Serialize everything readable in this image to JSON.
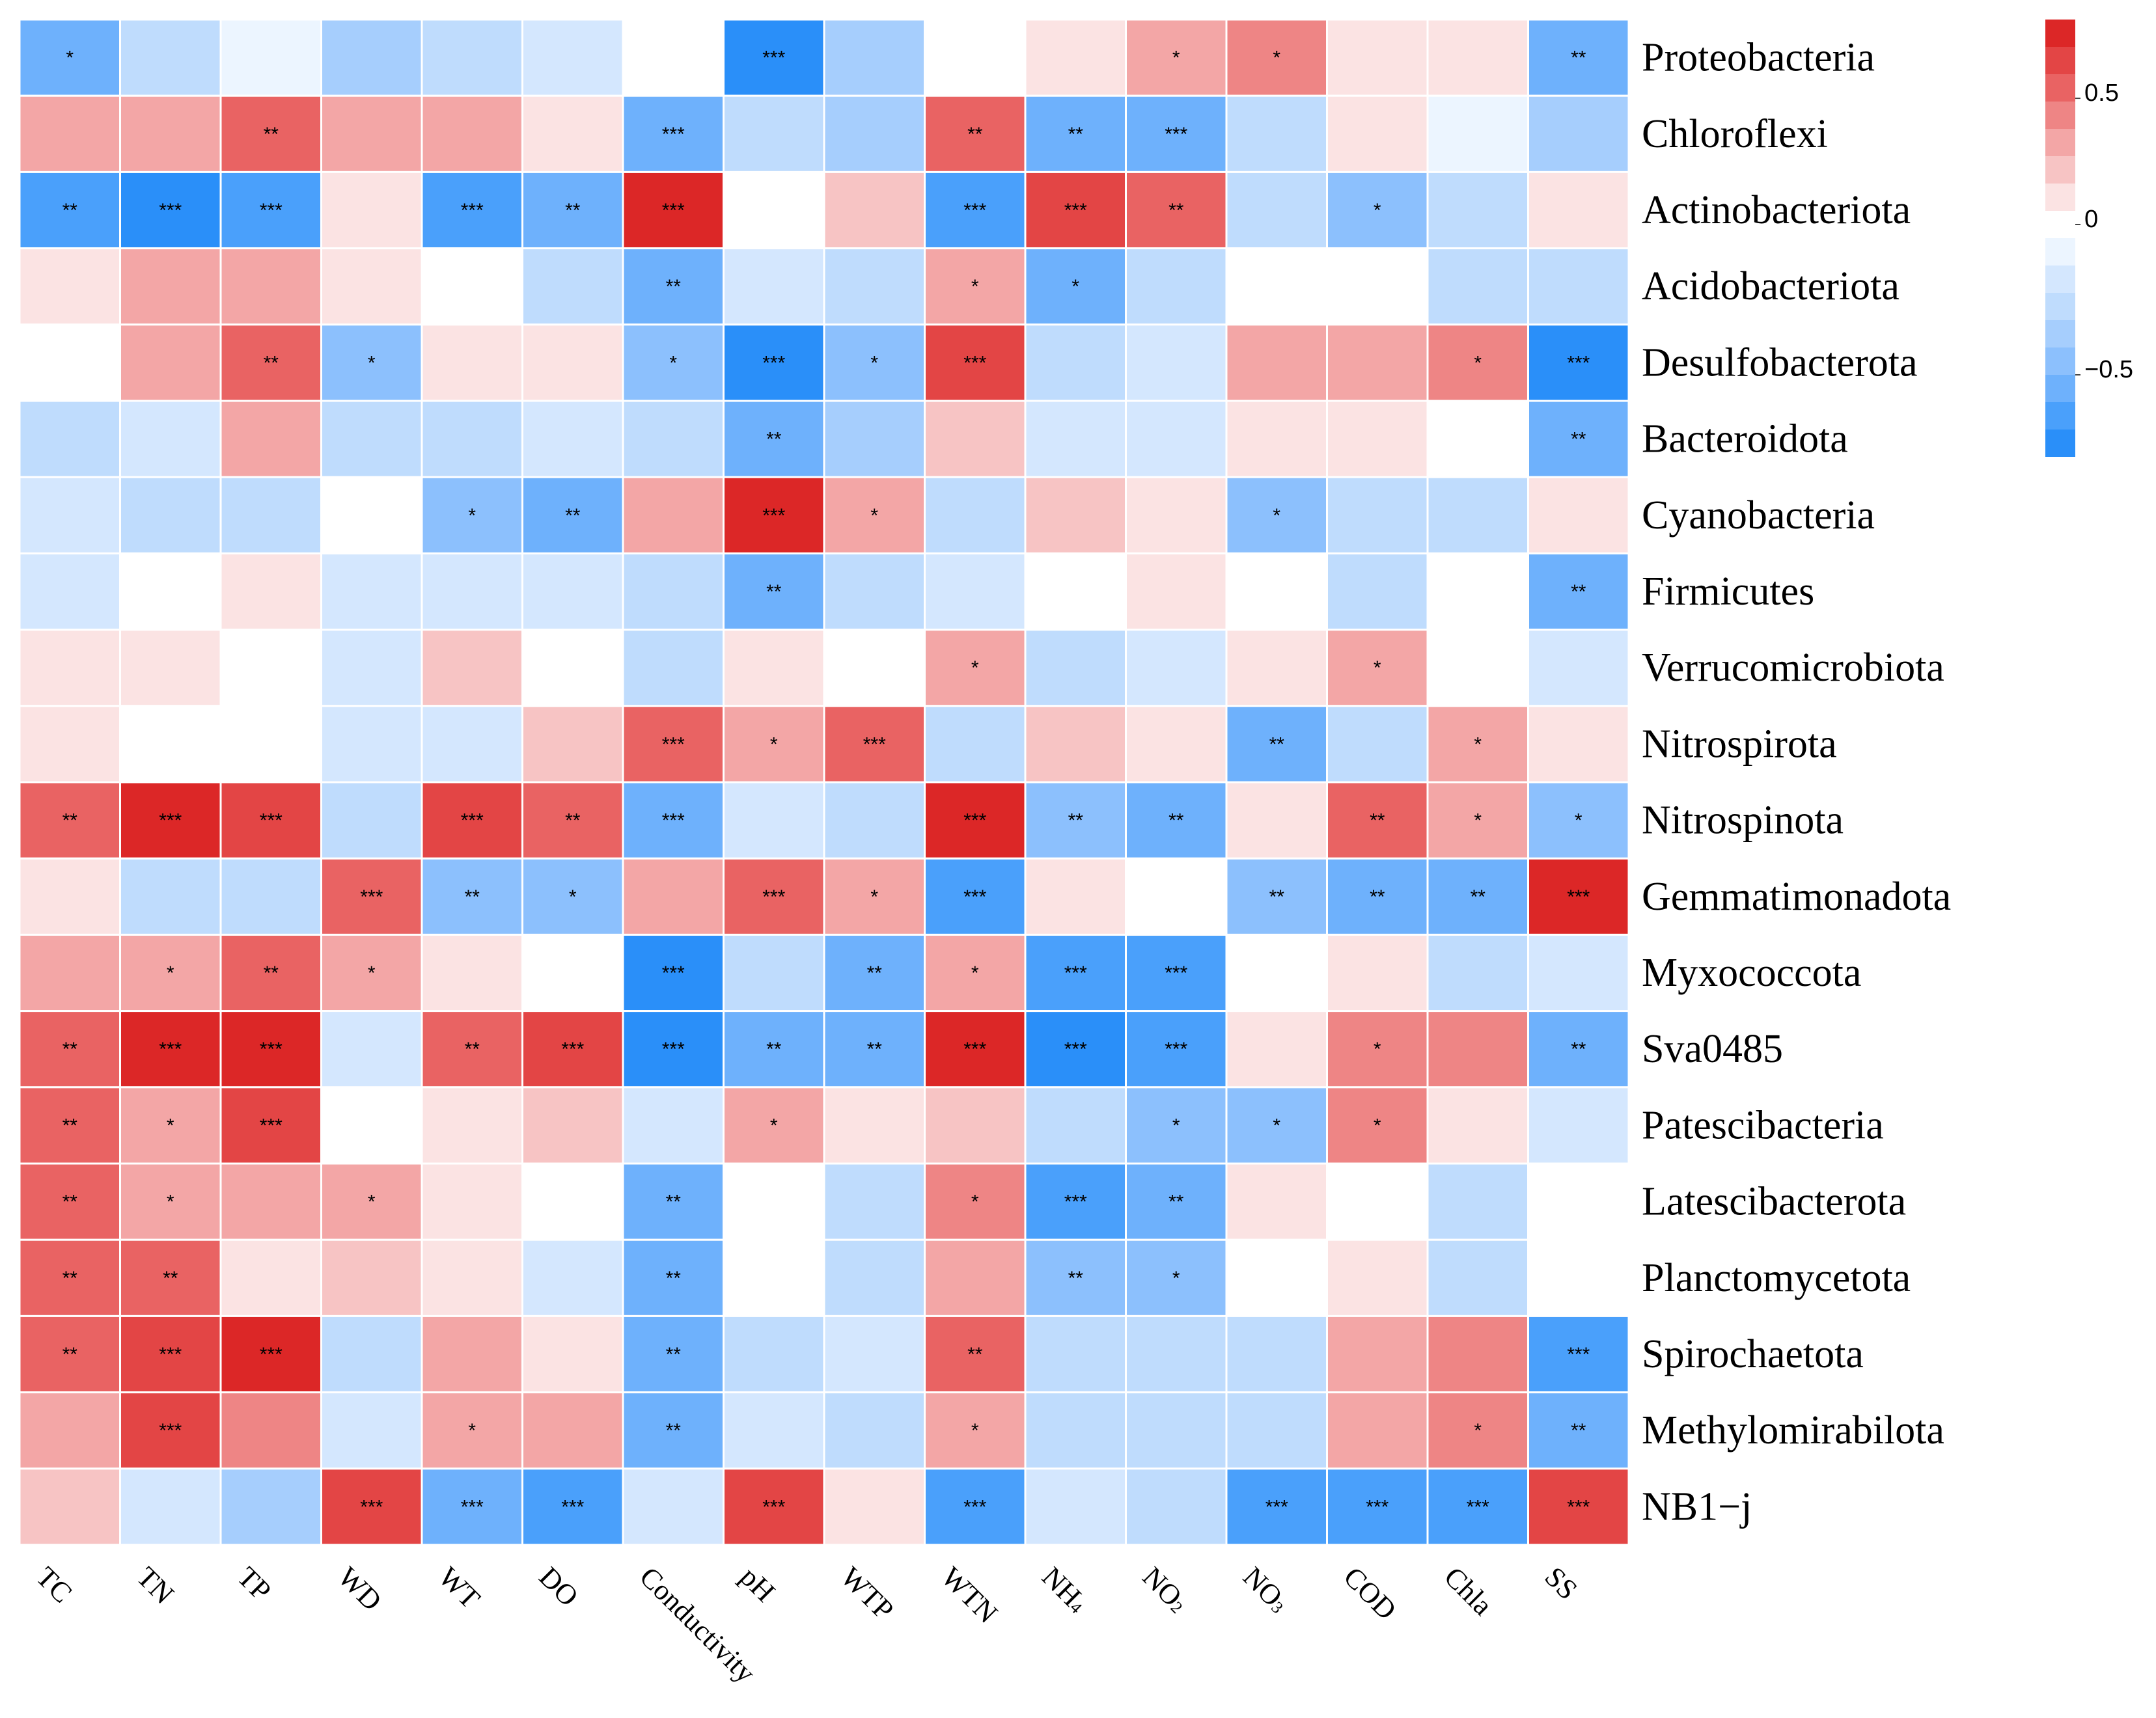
{
  "chart_data": {
    "type": "heatmap",
    "title": "",
    "columns": [
      {
        "label": "TC",
        "sub": ""
      },
      {
        "label": "TN",
        "sub": ""
      },
      {
        "label": "TP",
        "sub": ""
      },
      {
        "label": "WD",
        "sub": ""
      },
      {
        "label": "WT",
        "sub": ""
      },
      {
        "label": "DO",
        "sub": ""
      },
      {
        "label": "Conductivity",
        "sub": ""
      },
      {
        "label": "pH",
        "sub": ""
      },
      {
        "label": "WTP",
        "sub": ""
      },
      {
        "label": "WTN",
        "sub": ""
      },
      {
        "label": "NH",
        "sub": "4"
      },
      {
        "label": "NO",
        "sub": "2"
      },
      {
        "label": "NO",
        "sub": "3"
      },
      {
        "label": "COD",
        "sub": ""
      },
      {
        "label": "Chla",
        "sub": ""
      },
      {
        "label": "SS",
        "sub": ""
      }
    ],
    "rows": [
      "Proteobacteria",
      "Chloroflexi",
      "Actinobacteriota",
      "Acidobacteriota",
      "Desulfobacterota",
      "Bacteroidota",
      "Cyanobacteria",
      "Firmicutes",
      "Verrucomicrobiota",
      "Nitrospirota",
      "Nitrospinota",
      "Gemmatimonadota",
      "Myxococcota",
      "Sva0485",
      "Patescibacteria",
      "Latescibacterota",
      "Planctomycetota",
      "Spirochaetota",
      "Methylomirabilota",
      "NB1−j"
    ],
    "values": [
      [
        -0.5,
        -0.25,
        -0.05,
        -0.35,
        -0.25,
        -0.1,
        0,
        -0.75,
        -0.35,
        0,
        0.1,
        0.35,
        0.45,
        0.1,
        0.1,
        -0.5
      ],
      [
        0.25,
        0.25,
        0.55,
        0.25,
        0.25,
        0.1,
        -0.6,
        -0.2,
        -0.35,
        0.55,
        -0.6,
        -0.6,
        -0.2,
        0.1,
        -0.05,
        -0.35
      ],
      [
        -0.65,
        -0.75,
        -0.65,
        0.1,
        -0.7,
        -0.6,
        0.8,
        0,
        0.2,
        -0.7,
        0.7,
        0.6,
        -0.2,
        -0.4,
        -0.2,
        0.1
      ],
      [
        0.1,
        0.25,
        0.25,
        0.1,
        0,
        -0.2,
        -0.5,
        -0.1,
        -0.2,
        0.35,
        -0.5,
        -0.3,
        0,
        0,
        -0.2,
        -0.2
      ],
      [
        0,
        0.25,
        0.55,
        -0.45,
        0.1,
        0.1,
        -0.45,
        -0.75,
        -0.45,
        0.65,
        -0.2,
        -0.1,
        0.35,
        0.25,
        0.4,
        -0.75
      ],
      [
        -0.2,
        -0.1,
        0.35,
        -0.2,
        -0.2,
        -0.1,
        -0.2,
        -0.5,
        -0.35,
        0.2,
        -0.1,
        -0.1,
        0.1,
        0.1,
        0,
        -0.5
      ],
      [
        -0.1,
        -0.25,
        -0.2,
        0,
        -0.45,
        -0.55,
        0.25,
        0.8,
        0.35,
        -0.3,
        0.2,
        0.1,
        -0.45,
        -0.2,
        -0.3,
        0.1
      ],
      [
        -0.1,
        0,
        0.1,
        -0.1,
        -0.1,
        -0.1,
        -0.2,
        -0.5,
        -0.3,
        -0.1,
        0,
        0.1,
        0,
        -0.2,
        0,
        -0.5
      ],
      [
        0.1,
        0.1,
        0,
        -0.1,
        0.2,
        0,
        -0.3,
        0.1,
        0,
        0.35,
        -0.2,
        -0.1,
        0.1,
        0.35,
        0,
        -0.1
      ],
      [
        0.1,
        0,
        0,
        -0.1,
        -0.1,
        0.2,
        0.6,
        0.35,
        0.6,
        -0.2,
        0.2,
        0.1,
        -0.6,
        -0.2,
        0.35,
        0.1
      ],
      [
        0.6,
        0.75,
        0.7,
        -0.2,
        0.65,
        0.55,
        -0.6,
        -0.1,
        -0.2,
        0.75,
        -0.45,
        -0.5,
        0.1,
        0.55,
        0.35,
        -0.4
      ],
      [
        0.1,
        -0.25,
        -0.3,
        0.6,
        -0.45,
        -0.45,
        0.25,
        0.6,
        0.35,
        -0.65,
        0.1,
        0,
        -0.45,
        -0.55,
        -0.6,
        0.75
      ],
      [
        0.35,
        0.35,
        0.55,
        0.35,
        0.1,
        0,
        -0.75,
        -0.2,
        -0.55,
        0.35,
        -0.7,
        -0.65,
        0,
        0.1,
        -0.3,
        -0.1
      ],
      [
        0.6,
        0.75,
        0.85,
        -0.1,
        0.55,
        0.65,
        -0.75,
        -0.55,
        -0.55,
        0.85,
        -0.8,
        -0.7,
        0.1,
        0.4,
        0.45,
        -0.5
      ],
      [
        0.6,
        0.35,
        0.65,
        0,
        0.1,
        0.2,
        -0.1,
        0.35,
        0.1,
        0.2,
        -0.2,
        -0.4,
        -0.4,
        0.4,
        0.1,
        -0.1
      ],
      [
        0.6,
        0.35,
        0.25,
        0.35,
        0.1,
        0,
        -0.5,
        0,
        -0.2,
        0.45,
        -0.7,
        -0.55,
        0.1,
        0,
        -0.2,
        0
      ],
      [
        0.6,
        0.5,
        0.1,
        0.2,
        0.1,
        -0.1,
        -0.5,
        0,
        -0.2,
        0.25,
        -0.45,
        -0.4,
        0,
        0.1,
        -0.2,
        0
      ],
      [
        0.6,
        0.7,
        0.75,
        -0.2,
        0.25,
        0.1,
        -0.5,
        -0.2,
        -0.1,
        0.5,
        -0.25,
        -0.3,
        -0.25,
        0.25,
        0.4,
        -0.7
      ],
      [
        0.35,
        0.65,
        0.4,
        -0.1,
        0.35,
        0.25,
        -0.55,
        -0.1,
        -0.2,
        0.35,
        -0.3,
        -0.3,
        -0.25,
        0.25,
        0.4,
        -0.55
      ],
      [
        0.2,
        -0.1,
        -0.35,
        0.65,
        -0.6,
        -0.7,
        -0.1,
        0.65,
        0.1,
        -0.65,
        -0.1,
        -0.2,
        -0.65,
        -0.7,
        -0.7,
        0.7
      ]
    ],
    "significance": [
      [
        "*",
        "",
        "",
        "",
        "",
        "",
        "",
        "***",
        "",
        "",
        "",
        "*",
        "*",
        "",
        "",
        "**"
      ],
      [
        "",
        "",
        "**",
        "",
        "",
        "",
        "***",
        "",
        "",
        "**",
        "**",
        "***",
        "",
        "",
        "",
        ""
      ],
      [
        "**",
        "***",
        "***",
        "",
        "***",
        "**",
        "***",
        "",
        "",
        "***",
        "***",
        "**",
        "",
        "*",
        "",
        ""
      ],
      [
        "",
        "",
        "",
        "",
        "",
        "",
        "**",
        "",
        "",
        "*",
        "*",
        "",
        "",
        "",
        "",
        ""
      ],
      [
        "",
        "",
        "**",
        "*",
        "",
        "",
        "*",
        "***",
        "*",
        "***",
        "",
        "",
        "",
        "",
        "*",
        "***"
      ],
      [
        "",
        "",
        "",
        "",
        "",
        "",
        "",
        "**",
        "",
        "",
        "",
        "",
        "",
        "",
        "",
        "**"
      ],
      [
        "",
        "",
        "",
        "",
        "*",
        "**",
        "",
        "***",
        "*",
        "",
        "",
        "",
        "*",
        "",
        "",
        ""
      ],
      [
        "",
        "",
        "",
        "",
        "",
        "",
        "",
        "**",
        "",
        "",
        "",
        "",
        "",
        "",
        "",
        "**"
      ],
      [
        "",
        "",
        "",
        "",
        "",
        "",
        "",
        "",
        "",
        "*",
        "",
        "",
        "",
        "*",
        "",
        ""
      ],
      [
        "",
        "",
        "",
        "",
        "",
        "",
        "***",
        "*",
        "***",
        "",
        "",
        "",
        "**",
        "",
        "*",
        ""
      ],
      [
        "**",
        "***",
        "***",
        "",
        "***",
        "**",
        "***",
        "",
        "",
        "***",
        "**",
        "**",
        "",
        "**",
        "*",
        "*"
      ],
      [
        "",
        "",
        "",
        "***",
        "**",
        "*",
        "",
        "***",
        "*",
        "***",
        "",
        "",
        "**",
        "**",
        "**",
        "***"
      ],
      [
        "",
        "*",
        "**",
        "*",
        "",
        "",
        "***",
        "",
        "**",
        "*",
        "***",
        "***",
        "",
        "",
        "",
        ""
      ],
      [
        "**",
        "***",
        "***",
        "",
        "**",
        "***",
        "***",
        "**",
        "**",
        "***",
        "***",
        "***",
        "",
        "*",
        "",
        "**"
      ],
      [
        "**",
        "*",
        "***",
        "",
        "",
        "",
        "",
        "*",
        "",
        "",
        "",
        "*",
        "*",
        "*",
        "",
        ""
      ],
      [
        "**",
        "*",
        "",
        "*",
        "",
        "",
        "**",
        "",
        "",
        "*",
        "***",
        "**",
        "",
        "",
        "",
        ""
      ],
      [
        "**",
        "**",
        "",
        "",
        "",
        "",
        "**",
        "",
        "",
        "",
        "**",
        "*",
        "",
        "",
        "",
        ""
      ],
      [
        "**",
        "***",
        "***",
        "",
        "",
        "",
        "**",
        "",
        "",
        "**",
        "",
        "",
        "",
        "",
        "",
        "***"
      ],
      [
        "",
        "***",
        "",
        "",
        "*",
        "",
        "**",
        "",
        "",
        "*",
        "",
        "",
        "",
        "",
        "*",
        "**"
      ],
      [
        "",
        "",
        "",
        "***",
        "***",
        "***",
        "",
        "***",
        "",
        "***",
        "",
        "",
        "***",
        "***",
        "***",
        "***"
      ]
    ],
    "color_scale": {
      "range": [
        -0.8,
        0.85
      ],
      "positive_colors": [
        "#fbe3e3",
        "#f7c4c4",
        "#f3a6a6",
        "#ee8585",
        "#e96363",
        "#e34545",
        "#dc2727"
      ],
      "negative_colors": [
        "#ecf5ff",
        "#d4e7fe",
        "#bfdcfd",
        "#a6cefd",
        "#8cc0fd",
        "#6eb1fc",
        "#4aa0fb",
        "#2a8ff9"
      ]
    },
    "legend": {
      "ticks": [
        {
          "label": "0.5",
          "value": 0.5
        },
        {
          "label": "0",
          "value": 0
        },
        {
          "label": "−0.5",
          "value": -0.5
        }
      ],
      "placement": "top-right"
    }
  }
}
